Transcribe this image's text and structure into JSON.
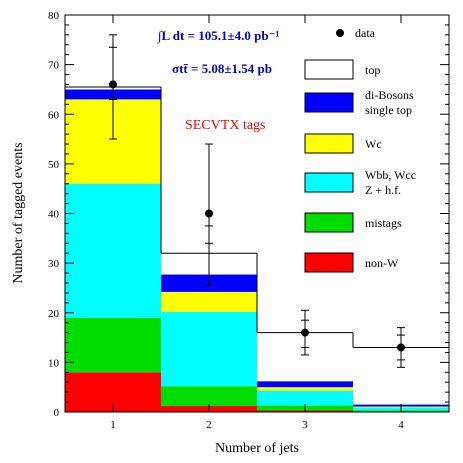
{
  "chart_data": {
    "type": "bar",
    "stacked": true,
    "categories": [
      "1",
      "2",
      "3",
      "4"
    ],
    "xlabel": "Number of jets",
    "ylabel": "Number of tagged events",
    "ylim": [
      0,
      80
    ],
    "yticks": [
      0,
      10,
      20,
      30,
      40,
      50,
      60,
      70,
      80
    ],
    "series": [
      {
        "name": "non-W",
        "color": "#ff0000",
        "values": [
          8,
          1.2,
          0.3,
          0.1
        ]
      },
      {
        "name": "mistags",
        "color": "#00dd00",
        "values": [
          11,
          4,
          1,
          0.2
        ]
      },
      {
        "name": "Wbb, Wcc Z + h.f.",
        "color": "#00ffff",
        "values": [
          27,
          15,
          3,
          0.6
        ]
      },
      {
        "name": "Wc",
        "color": "#ffff00",
        "values": [
          17,
          4,
          0.7,
          0.2
        ]
      },
      {
        "name": "di-Bosons single top",
        "color": "#0000ff",
        "values": [
          2,
          3.5,
          1.2,
          0.4
        ]
      },
      {
        "name": "top",
        "color": "#ffffff",
        "values": [
          0.5,
          4.3,
          9.8,
          11.5
        ]
      }
    ],
    "data_points": {
      "name": "data",
      "values": [
        66,
        40,
        16,
        13
      ],
      "inner_err": [
        [
          63,
          73.5
        ],
        [
          34,
          37.5
        ],
        [
          13,
          18.5
        ],
        [
          10.5,
          15.5
        ]
      ],
      "outer_err": [
        [
          55,
          76
        ],
        [
          25.5,
          54
        ],
        [
          11.5,
          20.5
        ],
        [
          9,
          17
        ]
      ]
    },
    "annotations": {
      "lumi": "∫L dt = 105.1±4.0 pb⁻¹",
      "xsec": "σtt̄ = 5.08±1.54 pb",
      "tags": "SECVTX tags"
    }
  }
}
